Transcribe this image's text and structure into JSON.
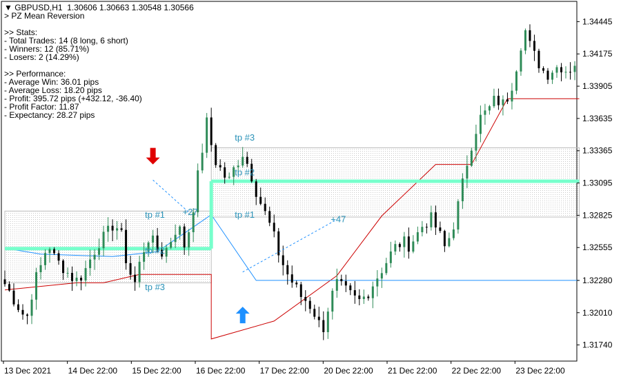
{
  "header": {
    "symbol": "GBPUSD,H1",
    "ohlc": "1.30606 1.30663 1.30548 1.30566",
    "indicator": "> PZ Mean Reversion"
  },
  "stats": {
    "title": ">> Stats:",
    "lines": [
      "- Total Trades: 14 (8 long, 6 short)",
      "- Winners: 12 (85.71%)",
      "- Losers: 2 (14.29%)"
    ]
  },
  "performance": {
    "title": ">> Performance:",
    "lines": [
      "- Average Win: 36.01 pips",
      "- Average Loss: 18.20 pips",
      "- Profit: 395.72 pips (+432.12, -36.40)",
      "- Profit Factor: 11.87",
      "- Expectancy: 28.27 pips"
    ]
  },
  "colors": {
    "bull": "#2e8b57",
    "bear": "#000000",
    "doji": "#2e8b57",
    "upper_band": "#cc0000",
    "mid_line": "#1e90ff",
    "tp_line": "#77ffcc",
    "tp_text": "#2a92b8",
    "sell_arrow": "#e00000",
    "buy_arrow": "#1e90ff"
  },
  "chart_data": {
    "type": "candlestick",
    "title": "",
    "ylim": [
      1.31605,
      1.3458
    ],
    "y_ticks": [
      "1.34445",
      "1.34175",
      "1.33905",
      "1.33635",
      "1.33365",
      "1.33095",
      "1.32825",
      "1.32555",
      "1.32280",
      "1.32010",
      "1.31740"
    ],
    "x_ticks": [
      "13 Dec 2021",
      "14 Dec 22:00",
      "15 Dec 22:00",
      "16 Dec 22:00",
      "17 Dec 22:00",
      "20 Dec 22:00",
      "21 Dec 22:00",
      "22 Dec 22:00",
      "23 Dec 22:00"
    ],
    "price_path": [
      1.3225,
      1.3215,
      1.3205,
      1.3195,
      1.3225,
      1.324,
      1.326,
      1.3245,
      1.324,
      1.3232,
      1.3228,
      1.3235,
      1.3248,
      1.326,
      1.3265,
      1.3275,
      1.327,
      1.324,
      1.3225,
      1.325,
      1.3265,
      1.3255,
      1.325,
      1.3262,
      1.3275,
      1.3255,
      1.3285,
      1.3325,
      1.336,
      1.333,
      1.332,
      1.331,
      1.3325,
      1.3335,
      1.332,
      1.33,
      1.3285,
      1.327,
      1.325,
      1.3235,
      1.3225,
      1.3215,
      1.321,
      1.32,
      1.3185,
      1.321,
      1.3225,
      1.322,
      1.3215,
      1.321,
      1.3215,
      1.3225,
      1.3235,
      1.3245,
      1.3255,
      1.326,
      1.3258,
      1.3265,
      1.3275,
      1.328,
      1.327,
      1.3255,
      1.327,
      1.3295,
      1.3325,
      1.335,
      1.3365,
      1.337,
      1.338,
      1.3375,
      1.3385,
      1.341,
      1.344,
      1.342,
      1.341,
      1.34,
      1.3405,
      1.3408,
      1.3403,
      1.341
    ],
    "upper_band": [
      [
        0,
        1.322
      ],
      [
        16,
        1.3226
      ],
      [
        22,
        1.3226
      ],
      [
        30,
        1.3233
      ],
      [
        46,
        1.3233
      ],
      [
        46,
        1.3179
      ],
      [
        60,
        1.3194
      ],
      [
        74,
        1.3232
      ],
      [
        84,
        1.3282
      ],
      [
        96,
        1.3325
      ],
      [
        104,
        1.3325
      ],
      [
        112,
        1.338
      ],
      [
        128,
        1.338
      ]
    ],
    "mid_line": [
      [
        0,
        1.3255
      ],
      [
        8,
        1.325
      ],
      [
        24,
        1.3248
      ],
      [
        34,
        1.3252
      ],
      [
        46,
        1.3283
      ],
      [
        56,
        1.3228
      ],
      [
        76,
        1.3228
      ],
      [
        90,
        1.3228
      ],
      [
        106,
        1.3228
      ],
      [
        128,
        1.3228
      ]
    ],
    "tp_lines": [
      {
        "from": 0,
        "to": 46,
        "price": 1.32546
      },
      {
        "from": 46,
        "to": 128,
        "price": 1.3311
      }
    ],
    "zones": [
      {
        "from": 0,
        "to": 46,
        "top": 1.3286,
        "bottom": 1.3226
      },
      {
        "from": 46,
        "to": 128,
        "top": 1.3339,
        "bottom": 1.3281
      }
    ],
    "trades": [
      {
        "type": "sell",
        "entry_x": 33,
        "entry_price": 1.3312,
        "exit_x": 41,
        "exit_price": 1.3285,
        "label": "+27"
      },
      {
        "type": "buy",
        "entry_x": 53,
        "entry_price": 1.3235,
        "exit_x": 74,
        "exit_price": 1.3279,
        "label": "+47"
      }
    ],
    "tp_labels": [
      {
        "text": "tp #1",
        "x": 34,
        "price": 1.32805
      },
      {
        "text": "tp #2",
        "x": 34,
        "price": 1.32505
      },
      {
        "text": "tp #3",
        "x": 34,
        "price": 1.322
      },
      {
        "text": "tp #3",
        "x": 54,
        "price": 1.3345
      },
      {
        "text": "tp #2",
        "x": 54,
        "price": 1.3316
      },
      {
        "text": "tp #1",
        "x": 54,
        "price": 1.32805
      }
    ],
    "arrows": [
      {
        "type": "sell",
        "x": 33,
        "price": 1.3325
      },
      {
        "type": "buy",
        "x": 53,
        "price": 1.3206
      }
    ]
  }
}
